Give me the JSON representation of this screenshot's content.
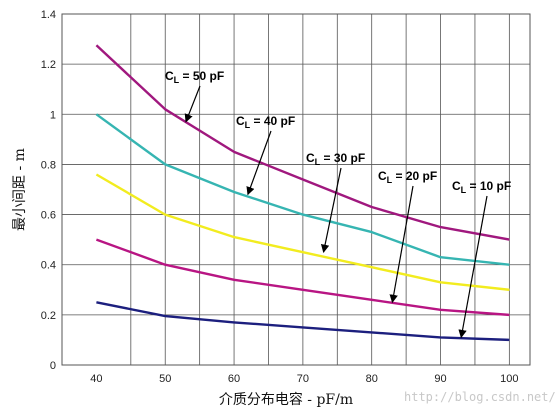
{
  "chart_data": {
    "type": "line",
    "title": "",
    "xlabel": "介质分布电容 - pF/m",
    "ylabel": "最小间距 - m",
    "xlim": [
      35,
      103
    ],
    "ylim": [
      0,
      1.4
    ],
    "x_ticks": [
      40,
      50,
      60,
      70,
      80,
      90,
      100
    ],
    "y_ticks": [
      0,
      0.2,
      0.4,
      0.6,
      0.8,
      1.0,
      1.2,
      1.4
    ],
    "y_tick_labels": [
      "0",
      "0.2",
      "0.4",
      "0.6",
      "0.8",
      "1",
      "1.2",
      "1.4"
    ],
    "grid": true,
    "series": [
      {
        "name": "50 pF",
        "label_prefix": "C",
        "label_sub": "L",
        "label_rest": " = 50 pF",
        "color": "#a0187e",
        "x": [
          40,
          50,
          60,
          70,
          80,
          90,
          100
        ],
        "y": [
          1.275,
          1.02,
          0.85,
          0.74,
          0.63,
          0.55,
          0.5
        ]
      },
      {
        "name": "40 pF",
        "label_prefix": "C",
        "label_sub": "L",
        "label_rest": " = 40 pF",
        "color": "#36b5b2",
        "x": [
          40,
          50,
          60,
          70,
          80,
          90,
          100
        ],
        "y": [
          1.0,
          0.8,
          0.69,
          0.6,
          0.53,
          0.43,
          0.4
        ]
      },
      {
        "name": "30 pF",
        "label_prefix": "C",
        "label_sub": "L",
        "label_rest": " = 30 pF",
        "color": "#f2ec1f",
        "x": [
          40,
          50,
          60,
          70,
          80,
          90,
          100
        ],
        "y": [
          0.76,
          0.6,
          0.51,
          0.45,
          0.39,
          0.33,
          0.3
        ]
      },
      {
        "name": "20 pF",
        "label_prefix": "C",
        "label_sub": "L",
        "label_rest": " = 20 pF",
        "color": "#b81583",
        "x": [
          40,
          50,
          60,
          70,
          80,
          90,
          100
        ],
        "y": [
          0.5,
          0.4,
          0.34,
          0.3,
          0.26,
          0.22,
          0.2
        ]
      },
      {
        "name": "10 pF",
        "label_prefix": "C",
        "label_sub": "L",
        "label_rest": " = 10 pF",
        "color": "#1c1f7e",
        "x": [
          40,
          50,
          60,
          70,
          80,
          90,
          100
        ],
        "y": [
          0.25,
          0.195,
          0.17,
          0.15,
          0.13,
          0.11,
          0.1
        ]
      }
    ],
    "annotations": [
      {
        "series_index": 0,
        "arrow_to": [
          53,
          0.97
        ]
      },
      {
        "series_index": 1,
        "arrow_to": [
          62,
          0.68
        ]
      },
      {
        "series_index": 2,
        "arrow_to": [
          73,
          0.45
        ]
      },
      {
        "series_index": 3,
        "arrow_to": [
          83,
          0.25
        ]
      },
      {
        "series_index": 4,
        "arrow_to": [
          93,
          0.11
        ]
      }
    ]
  },
  "watermark": "http://blog.csdn.net/"
}
